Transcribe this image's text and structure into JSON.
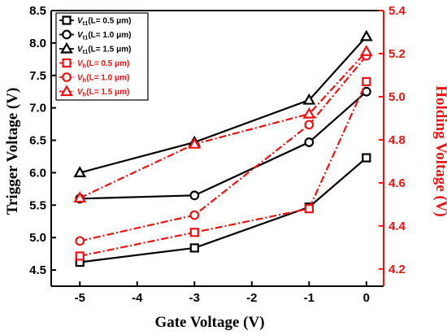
{
  "chart_data": {
    "type": "line",
    "title": "",
    "xlabel": "Gate Voltage (V)",
    "ylabel": "Trigger Voltage (V)",
    "y2label": "Holding Voltage (V)",
    "x": [
      -5,
      -3,
      -1,
      0
    ],
    "xlim": [
      -5.5,
      0.3
    ],
    "xticks": [
      "-5",
      "-4",
      "-3",
      "-2",
      "-1",
      "0"
    ],
    "ylim": [
      4.25,
      8.5
    ],
    "yticks": [
      "4.5",
      "5.0",
      "5.5",
      "6.0",
      "6.5",
      "7.0",
      "7.5",
      "8.0",
      "8.5"
    ],
    "y2lim": [
      4.12,
      5.4
    ],
    "y2ticks": [
      "4.2",
      "4.4",
      "4.6",
      "4.8",
      "5.0",
      "5.2",
      "5.4"
    ],
    "grid": false,
    "legend_position": "top-left",
    "colors": {
      "trigger": "#000000",
      "holding": "#ee1111"
    },
    "series": [
      {
        "name": "Vt1(L= 0.5 μm)",
        "legend": {
          "base": "V",
          "sub": "t1",
          "rest": "(L= 0.5 μm)"
        },
        "axis": "left",
        "marker": "square",
        "dashed": false,
        "values": [
          4.62,
          4.84,
          5.47,
          6.23
        ]
      },
      {
        "name": "Vt1(L= 1.0 μm)",
        "legend": {
          "base": "V",
          "sub": "t1",
          "rest": "(L= 1.0 μm)"
        },
        "axis": "left",
        "marker": "circle",
        "dashed": false,
        "values": [
          5.6,
          5.65,
          6.47,
          7.25
        ]
      },
      {
        "name": "Vt1(L= 1.5 μm)",
        "legend": {
          "base": "V",
          "sub": "t1",
          "rest": "(L= 1.5 μm)"
        },
        "axis": "left",
        "marker": "triangle",
        "dashed": false,
        "values": [
          6.0,
          6.47,
          7.12,
          8.1
        ]
      },
      {
        "name": "Vh(L= 0.5 μm)",
        "legend": {
          "base": "V",
          "sub": "h",
          "rest": "(L= 0.5 μm)"
        },
        "axis": "right",
        "marker": "square",
        "dashed": true,
        "values": [
          4.26,
          4.37,
          4.48,
          5.07
        ]
      },
      {
        "name": "Vh(L= 1.0 μm)",
        "legend": {
          "base": "V",
          "sub": "h",
          "rest": "(L= 1.0 μm)"
        },
        "axis": "right",
        "marker": "circle",
        "dashed": true,
        "values": [
          4.33,
          4.45,
          4.87,
          5.19
        ]
      },
      {
        "name": "Vh(L= 1.5 μm)",
        "legend": {
          "base": "V",
          "sub": "h",
          "rest": "(L= 1.5 μm)"
        },
        "axis": "right",
        "marker": "triangle",
        "dashed": true,
        "values": [
          4.53,
          4.78,
          4.92,
          5.21
        ]
      }
    ]
  }
}
